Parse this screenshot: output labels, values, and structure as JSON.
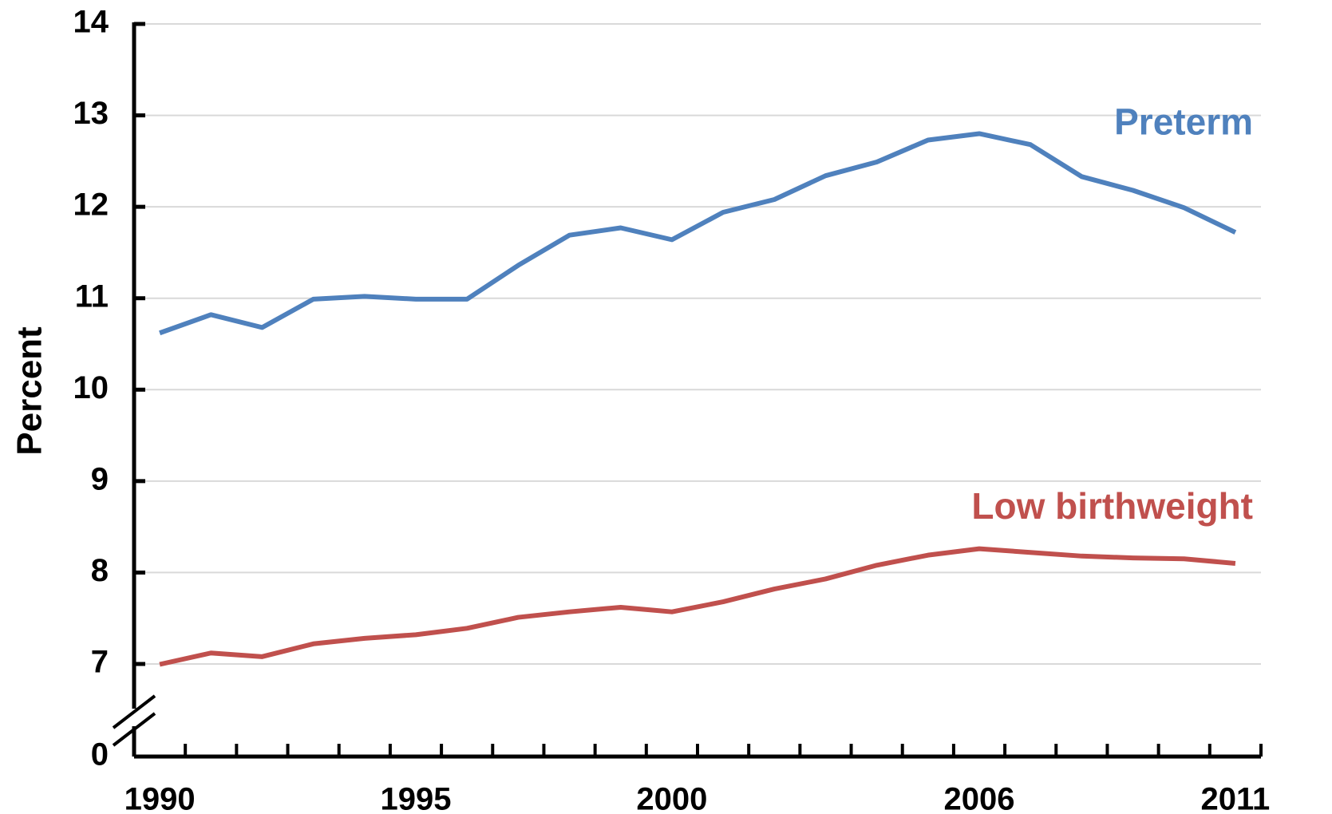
{
  "chart_data": {
    "type": "line",
    "y_label": "Percent",
    "x": [
      1990,
      1991,
      1992,
      1993,
      1994,
      1995,
      1996,
      1997,
      1998,
      1999,
      2000,
      2001,
      2002,
      2003,
      2004,
      2005,
      2006,
      2007,
      2008,
      2009,
      2010,
      2011
    ],
    "series": [
      {
        "name": "Preterm",
        "color": "#4f81bd",
        "values": [
          10.62,
          10.82,
          10.68,
          10.99,
          11.02,
          10.99,
          10.99,
          11.36,
          11.69,
          11.77,
          11.64,
          11.94,
          12.08,
          12.34,
          12.49,
          12.73,
          12.8,
          12.68,
          12.33,
          12.18,
          11.99,
          11.72
        ]
      },
      {
        "name": "Low birthweight",
        "color": "#c0504d",
        "values": [
          6.97,
          7.12,
          7.08,
          7.22,
          7.28,
          7.32,
          7.39,
          7.51,
          7.57,
          7.62,
          7.57,
          7.68,
          7.82,
          7.93,
          8.08,
          8.19,
          8.26,
          8.22,
          8.18,
          8.16,
          8.15,
          8.1
        ]
      }
    ],
    "xlim": [
      1990,
      2011
    ],
    "xticks": [
      1990,
      1995,
      2000,
      2006,
      2011
    ],
    "ylim": [
      0,
      14
    ],
    "yticks": [
      0,
      7,
      8,
      9,
      10,
      11,
      12,
      13,
      14
    ],
    "y_break": true,
    "grid": true
  }
}
